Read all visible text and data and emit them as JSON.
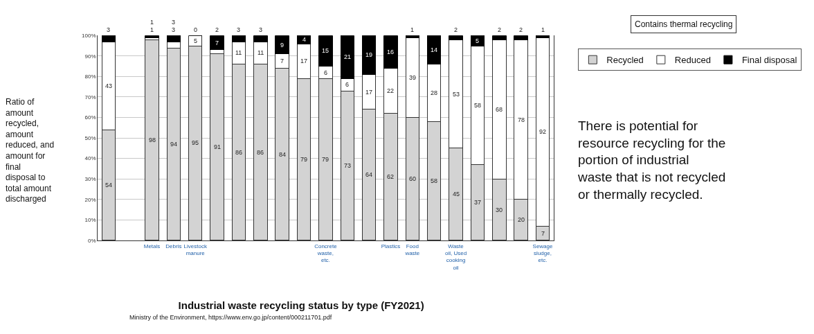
{
  "chart_data": {
    "type": "bar",
    "stacked": true,
    "title": "Industrial waste recycling status by type (FY2021)",
    "ylabel": "Ratio of amount recycled, amount reduced, and amount for final disposal to total amount discharged",
    "categories": [
      null,
      null,
      "Metals",
      "Debris",
      "Livestock manure",
      null,
      null,
      null,
      null,
      null,
      "Concrete waste, etc.",
      null,
      null,
      "Plastics",
      "Food waste",
      null,
      "Waste oil, Used cooking oil",
      null,
      null,
      null,
      "Sewage sludge, etc."
    ],
    "series": [
      {
        "name": "Recycled",
        "color": "#d3d3d3",
        "values": [
          54,
          null,
          98,
          94,
          95,
          91,
          86,
          86,
          84,
          79,
          79,
          73,
          64,
          62,
          60,
          58,
          45,
          37,
          30,
          20,
          7
        ]
      },
      {
        "name": "Reduced",
        "color": "#ffffff",
        "values": [
          43,
          null,
          1,
          3,
          5,
          2,
          11,
          11,
          7,
          17,
          6,
          6,
          17,
          22,
          39,
          28,
          53,
          58,
          68,
          78,
          92
        ]
      },
      {
        "name": "Final disposal",
        "color": "#000000",
        "values": [
          3,
          null,
          1,
          3,
          0,
          7,
          3,
          3,
          9,
          4,
          15,
          21,
          19,
          16,
          1,
          14,
          2,
          5,
          2,
          2,
          1
        ]
      }
    ],
    "ylim": [
      0,
      100
    ],
    "yticks": [
      {
        "value": 0,
        "label": "0%"
      },
      {
        "value": 10,
        "label": "10%"
      },
      {
        "value": 20,
        "label": "20%"
      },
      {
        "value": 30,
        "label": "30%"
      },
      {
        "value": 40,
        "label": "40%"
      },
      {
        "value": 50,
        "label": "50%"
      },
      {
        "value": 60,
        "label": "60%"
      },
      {
        "value": 70,
        "label": "70%"
      },
      {
        "value": 80,
        "label": "80%"
      },
      {
        "value": 90,
        "label": "90%"
      },
      {
        "value": 100,
        "label": "100%"
      }
    ],
    "grid": "y",
    "legend": "top right",
    "data_labels": true,
    "annotations": [
      "Contains thermal recycling",
      "There is potential for resource recycling for the portion of industrial waste that is not recycled or thermally recycled.",
      "Ministry of the Environment, https://www.env.go.jp/content/000211701.pdf"
    ]
  }
}
